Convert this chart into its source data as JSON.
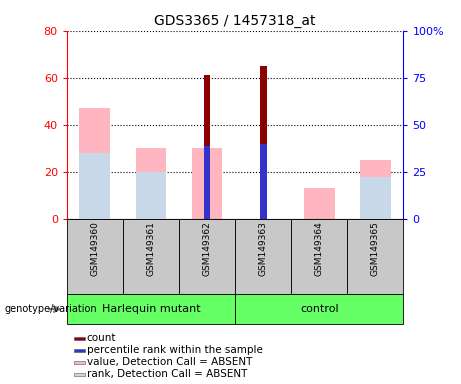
{
  "title": "GDS3365 / 1457318_at",
  "samples": [
    "GSM149360",
    "GSM149361",
    "GSM149362",
    "GSM149363",
    "GSM149364",
    "GSM149365"
  ],
  "ylim_left": [
    0,
    80
  ],
  "ylim_right": [
    0,
    100
  ],
  "yticks_left": [
    0,
    20,
    40,
    60,
    80
  ],
  "yticks_right": [
    0,
    25,
    50,
    75,
    100
  ],
  "yticklabels_right": [
    "0",
    "25",
    "50",
    "75",
    "100%"
  ],
  "colors": {
    "red_bar": "#8B0000",
    "blue_bar": "#3333CC",
    "pink_bar": "#FFB6C1",
    "lavender_bar": "#C8D8E8"
  },
  "red_bars": [
    0,
    0,
    61,
    65,
    0,
    0
  ],
  "blue_bars": [
    0,
    0,
    31,
    32,
    0,
    0
  ],
  "pink_bars": [
    47,
    30,
    30,
    0,
    13,
    25
  ],
  "lavender_bars": [
    28,
    20,
    0,
    0,
    0,
    18
  ],
  "legend_items": [
    {
      "color": "#8B0000",
      "label": "count"
    },
    {
      "color": "#3333CC",
      "label": "percentile rank within the sample"
    },
    {
      "color": "#FFB6C1",
      "label": "value, Detection Call = ABSENT"
    },
    {
      "color": "#C8D8E8",
      "label": "rank, Detection Call = ABSENT"
    }
  ],
  "genotype_label": "genotype/variation",
  "sample_bg": "#C8C8C8",
  "group_bg": "#66FF66",
  "plot_bg": "#ffffff",
  "group_info": [
    [
      0,
      2,
      "Harlequin mutant"
    ],
    [
      3,
      5,
      "control"
    ]
  ]
}
